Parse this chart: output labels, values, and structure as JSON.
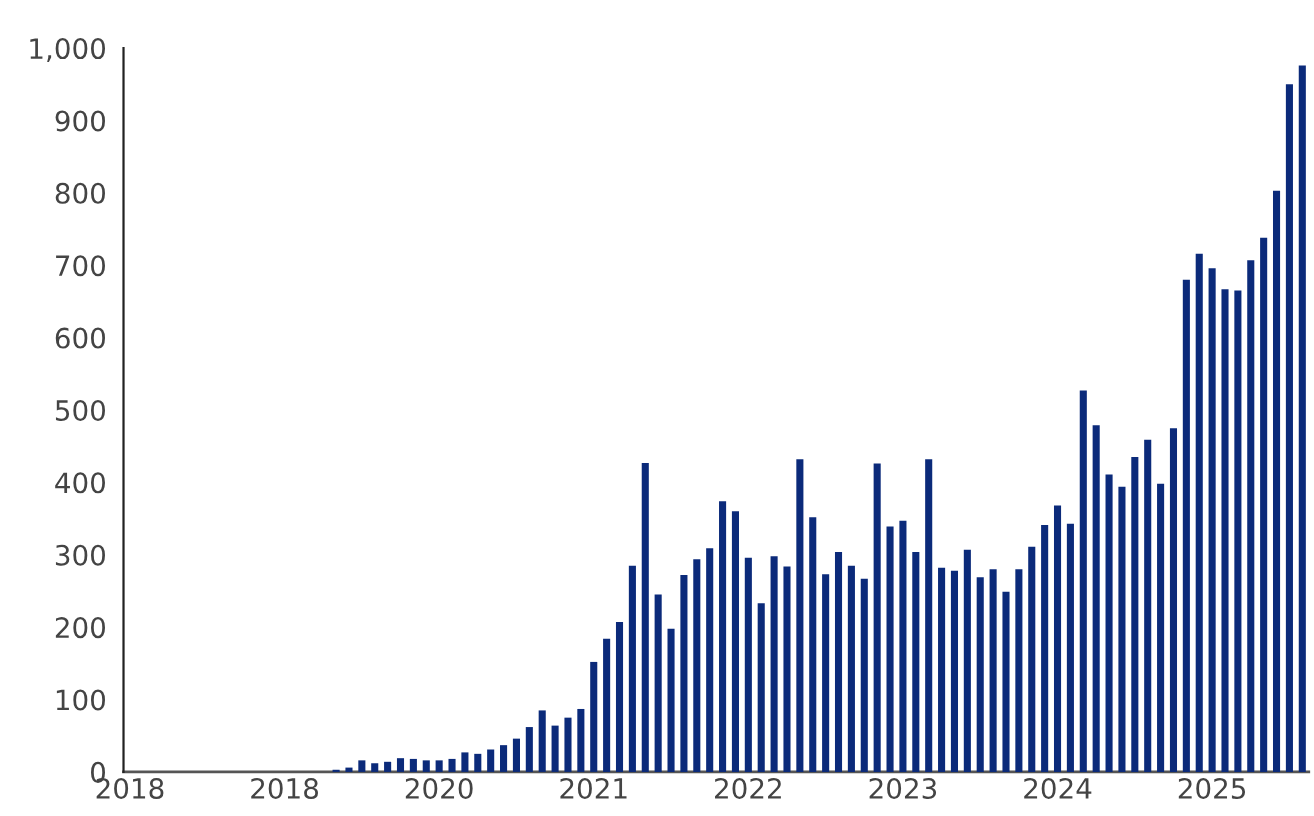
{
  "chart_data": {
    "type": "bar",
    "categories": [
      "2018",
      null,
      null,
      null,
      null,
      null,
      null,
      null,
      null,
      null,
      null,
      null,
      "2018",
      null,
      null,
      null,
      null,
      null,
      null,
      null,
      null,
      null,
      null,
      null,
      "2020",
      null,
      null,
      null,
      null,
      null,
      null,
      null,
      null,
      null,
      null,
      null,
      "2021",
      null,
      null,
      null,
      null,
      null,
      null,
      null,
      null,
      null,
      null,
      null,
      "2022",
      null,
      null,
      null,
      null,
      null,
      null,
      null,
      null,
      null,
      null,
      null,
      "2023",
      null,
      null,
      null,
      null,
      null,
      null,
      null,
      null,
      null,
      null,
      null,
      "2024",
      null,
      null,
      null,
      null,
      null,
      null,
      null,
      null,
      null,
      null,
      null,
      "2025",
      null,
      null,
      null,
      null,
      null,
      null,
      null
    ],
    "values": [
      0,
      0,
      0,
      0,
      0,
      0,
      0,
      0,
      0,
      0,
      0,
      0,
      0,
      0,
      0,
      0,
      3,
      6,
      16,
      12,
      14,
      19,
      18,
      16,
      16,
      18,
      27,
      25,
      31,
      37,
      46,
      62,
      85,
      64,
      75,
      87,
      152,
      184,
      207,
      285,
      427,
      245,
      198,
      272,
      294,
      309,
      374,
      360,
      296,
      233,
      298,
      284,
      432,
      352,
      273,
      304,
      285,
      267,
      426,
      339,
      347,
      304,
      432,
      282,
      278,
      307,
      269,
      280,
      249,
      280,
      311,
      341,
      368,
      343,
      527,
      479,
      411,
      394,
      435,
      459,
      398,
      475,
      680,
      716,
      696,
      667,
      665,
      707,
      738,
      803,
      950,
      976
    ],
    "color": "#0b2a7a",
    "ylim": [
      0,
      1000
    ],
    "yticks": [
      0,
      100,
      200,
      300,
      400,
      500,
      600,
      700,
      800,
      900,
      {
        "value": 1000,
        "label": "1,000"
      }
    ],
    "grid": false
  }
}
